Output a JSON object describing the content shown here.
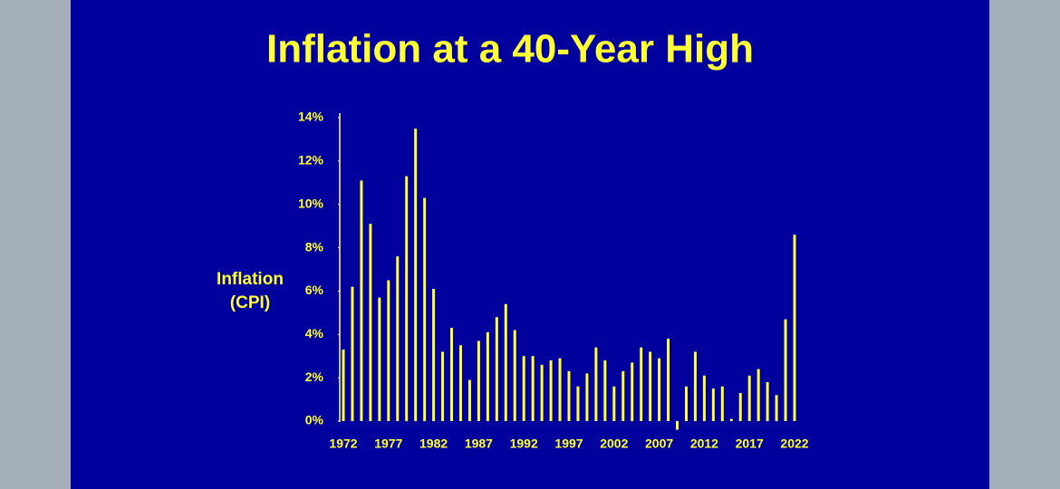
{
  "chart_data": {
    "type": "bar",
    "title": "Inflation at a 40-Year High",
    "y_label": [
      "Inflation",
      "(CPI)"
    ],
    "color": "#ffff33",
    "categories": [
      "1972",
      null,
      null,
      null,
      null,
      "1977",
      null,
      null,
      null,
      null,
      "1982",
      null,
      null,
      null,
      null,
      "1987",
      null,
      null,
      null,
      null,
      "1992",
      null,
      null,
      null,
      null,
      "1997",
      null,
      null,
      null,
      null,
      "2002",
      null,
      null,
      null,
      null,
      "2007",
      null,
      null,
      null,
      null,
      "2012",
      null,
      null,
      null,
      null,
      "2017",
      null,
      null,
      null,
      null,
      "2022"
    ],
    "values": [
      3.3,
      6.2,
      11.1,
      9.1,
      5.7,
      6.5,
      7.6,
      11.3,
      13.5,
      10.3,
      6.1,
      3.2,
      4.3,
      3.5,
      1.9,
      3.7,
      4.1,
      4.8,
      5.4,
      4.2,
      3.0,
      3.0,
      2.6,
      2.8,
      2.9,
      2.3,
      1.6,
      2.2,
      3.4,
      2.8,
      1.6,
      2.3,
      2.7,
      3.4,
      3.2,
      2.9,
      3.8,
      -0.4,
      1.6,
      3.2,
      2.1,
      1.5,
      1.6,
      0.1,
      1.3,
      2.1,
      2.4,
      1.8,
      1.2,
      4.7,
      8.6
    ],
    "ylim": [
      0,
      14
    ],
    "yticks": [
      {
        "value": 0,
        "label": "0%"
      },
      {
        "value": 2,
        "label": "2%"
      },
      {
        "value": 4,
        "label": "4%"
      },
      {
        "value": 6,
        "label": "6%"
      },
      {
        "value": 8,
        "label": "8%"
      },
      {
        "value": 10,
        "label": "10%"
      },
      {
        "value": 12,
        "label": "12%"
      },
      {
        "value": 14,
        "label": "14%"
      }
    ],
    "grid": false
  }
}
